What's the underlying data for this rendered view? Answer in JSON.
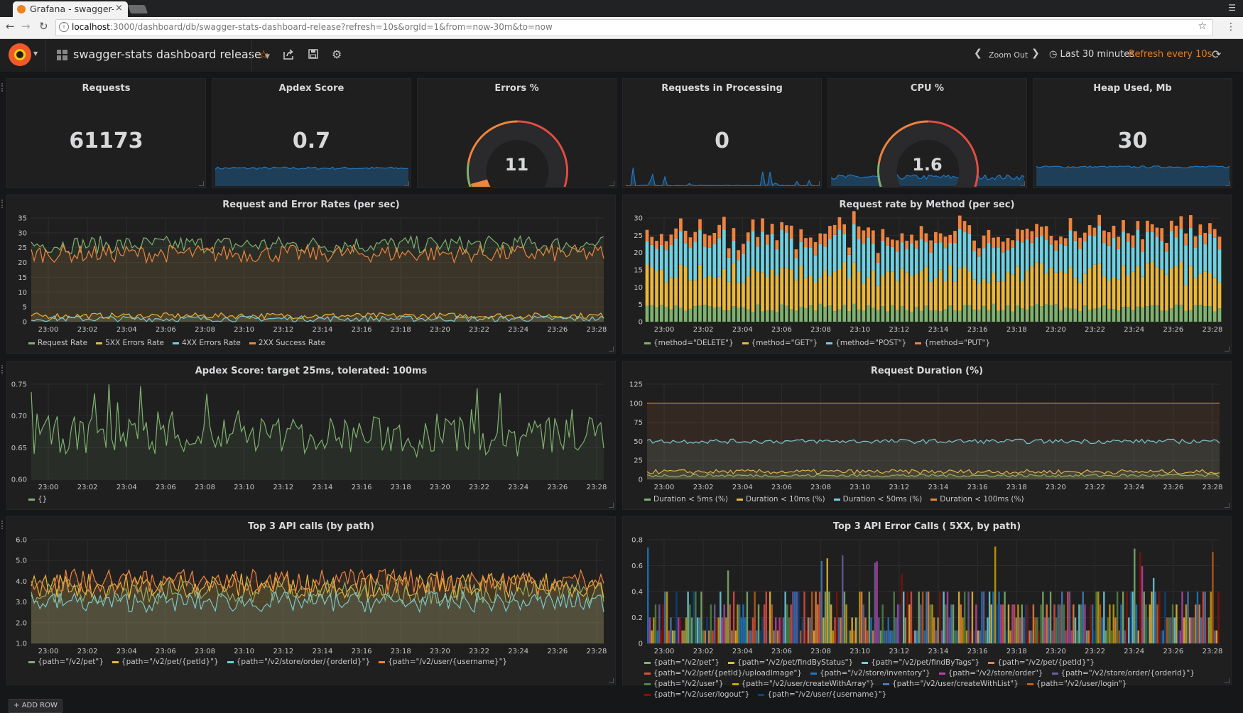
{
  "browser": {
    "tab_title": "Grafana - swagger-stats",
    "tab_close": "×",
    "url_host": "localhost",
    "url_rest": ":3000/dashboard/db/swagger-stats-dashboard-release?refresh=10s&orgId=1&from=now-30m&to=now"
  },
  "navbar": {
    "dashboard_title": "swagger-stats dashboard release",
    "zoom_out": "Zoom Out",
    "time_range": "Last 30 minutes",
    "refresh": "Refresh every 10s",
    "icons": [
      "grafana-logo",
      "dashboard-grid-icon",
      "star-icon",
      "share-icon",
      "save-icon",
      "settings-gear-icon",
      "chevron-left-icon",
      "chevron-right-icon",
      "clock-icon",
      "refresh-icon"
    ]
  },
  "colors": {
    "green": "#7eb26d",
    "yellow": "#eab839",
    "cyan": "#6ed0e0",
    "orange": "#ef843c",
    "red": "#e24d42",
    "blue": "#1f78c1",
    "purple": "#ba43a9",
    "dark_orange": "#cca300"
  },
  "stats": [
    {
      "title": "Requests",
      "value": "61173"
    },
    {
      "title": "Apdex Score",
      "value": "0.7"
    },
    {
      "title": "Errors %",
      "value": "11",
      "gauge_fraction": 0.11,
      "gauge_max": 100
    },
    {
      "title": "Requests in Processing",
      "value": "0"
    },
    {
      "title": "CPU %",
      "value": "1.6",
      "gauge_fraction": 0.016,
      "gauge_max": 100
    },
    {
      "title": "Heap Used, Mb",
      "value": "30"
    }
  ],
  "chart_data": [
    {
      "type": "line",
      "title": "Request and Error Rates (per sec)",
      "x_ticks": [
        "23:00",
        "23:02",
        "23:04",
        "23:06",
        "23:08",
        "23:10",
        "23:12",
        "23:14",
        "23:16",
        "23:18",
        "23:20",
        "23:22",
        "23:24",
        "23:26",
        "23:28"
      ],
      "y_ticks": [
        "0",
        "5",
        "10",
        "15",
        "20",
        "25",
        "30",
        "35"
      ],
      "ylim": [
        0,
        35
      ],
      "series": [
        {
          "name": "Request Rate",
          "color": "#7eb26d",
          "approx_level": 26,
          "spread": 3
        },
        {
          "name": "5XX Errors Rate",
          "color": "#eab839",
          "approx_level": 2,
          "spread": 1
        },
        {
          "name": "4XX Errors Rate",
          "color": "#6ed0e0",
          "approx_level": 1,
          "spread": 1
        },
        {
          "name": "2XX Success Rate",
          "color": "#ef843c",
          "approx_level": 23,
          "spread": 3
        }
      ]
    },
    {
      "type": "bar",
      "stacked": true,
      "title": "Request rate by Method (per sec)",
      "x_ticks": [
        "23:00",
        "23:02",
        "23:04",
        "23:06",
        "23:08",
        "23:10",
        "23:12",
        "23:14",
        "23:16",
        "23:18",
        "23:20",
        "23:22",
        "23:24",
        "23:26",
        "23:28"
      ],
      "y_ticks": [
        "0",
        "5",
        "10",
        "15",
        "20",
        "25",
        "30"
      ],
      "ylim": [
        0,
        30
      ],
      "series": [
        {
          "name": "{method=\"DELETE\"}",
          "color": "#7eb26d",
          "approx_level": 4
        },
        {
          "name": "{method=\"GET\"}",
          "color": "#eab839",
          "approx_level": 10
        },
        {
          "name": "{method=\"POST\"}",
          "color": "#6ed0e0",
          "approx_level": 9
        },
        {
          "name": "{method=\"PUT\"}",
          "color": "#ef843c",
          "approx_level": 3
        }
      ]
    },
    {
      "type": "line",
      "title": "Apdex Score: target 25ms, tolerated: 100ms",
      "x_ticks": [
        "23:00",
        "23:02",
        "23:04",
        "23:06",
        "23:08",
        "23:10",
        "23:12",
        "23:14",
        "23:16",
        "23:18",
        "23:20",
        "23:22",
        "23:24",
        "23:26",
        "23:28"
      ],
      "y_ticks": [
        "0.60",
        "0.65",
        "0.70",
        "0.75"
      ],
      "ylim": [
        0.6,
        0.75
      ],
      "series": [
        {
          "name": "{}",
          "color": "#7eb26d",
          "approx_level": 0.67,
          "spread": 0.03
        }
      ]
    },
    {
      "type": "line",
      "title": "Request Duration (%)",
      "x_ticks": [
        "23:00",
        "23:02",
        "23:04",
        "23:06",
        "23:08",
        "23:10",
        "23:12",
        "23:14",
        "23:16",
        "23:18",
        "23:20",
        "23:22",
        "23:24",
        "23:26",
        "23:28"
      ],
      "y_ticks": [
        "0",
        "25",
        "50",
        "75",
        "100",
        "125"
      ],
      "ylim": [
        0,
        125
      ],
      "series": [
        {
          "name": "Duration < 5ms (%)",
          "color": "#7eb26d",
          "approx_level": 5,
          "spread": 2
        },
        {
          "name": "Duration < 10ms (%)",
          "color": "#eab839",
          "approx_level": 10,
          "spread": 3
        },
        {
          "name": "Duration < 50ms (%)",
          "color": "#6ed0e0",
          "approx_level": 50,
          "spread": 3
        },
        {
          "name": "Duration < 100ms (%)",
          "color": "#ef843c",
          "approx_level": 100,
          "spread": 0
        }
      ]
    },
    {
      "type": "line",
      "title": "Top 3 API calls (by path)",
      "x_ticks": [
        "23:00",
        "23:02",
        "23:04",
        "23:06",
        "23:08",
        "23:10",
        "23:12",
        "23:14",
        "23:16",
        "23:18",
        "23:20",
        "23:22",
        "23:24",
        "23:26",
        "23:28"
      ],
      "y_ticks": [
        "1.0",
        "2.0",
        "3.0",
        "4.0",
        "5.0",
        "6.0"
      ],
      "ylim": [
        1,
        6
      ],
      "series": [
        {
          "name": "{path=\"/v2/pet\"}",
          "color": "#7eb26d",
          "approx_level": 3.5,
          "spread": 0.6
        },
        {
          "name": "{path=\"/v2/pet/{petId}\"}",
          "color": "#eab839",
          "approx_level": 3.8,
          "spread": 0.6
        },
        {
          "name": "{path=\"/v2/store/order/{orderId}\"}",
          "color": "#6ed0e0",
          "approx_level": 3.0,
          "spread": 0.5
        },
        {
          "name": "{path=\"/v2/user/{username}\"}",
          "color": "#ef843c",
          "approx_level": 4.0,
          "spread": 0.6
        }
      ]
    },
    {
      "type": "bar",
      "title": "Top 3 API Error Calls ( 5XX, by path)",
      "x_ticks": [
        "23:00",
        "23:02",
        "23:04",
        "23:06",
        "23:08",
        "23:10",
        "23:12",
        "23:14",
        "23:16",
        "23:18",
        "23:20",
        "23:22",
        "23:24",
        "23:26",
        "23:28"
      ],
      "y_ticks": [
        "0",
        "0.2",
        "0.4",
        "0.6",
        "0.8"
      ],
      "ylim": [
        0,
        0.8
      ],
      "series": [
        {
          "name": "{path=\"/v2/pet\"}",
          "color": "#7eb26d"
        },
        {
          "name": "{path=\"/v2/pet/findByStatus\"}",
          "color": "#eab839"
        },
        {
          "name": "{path=\"/v2/pet/findByTags\"}",
          "color": "#6ed0e0"
        },
        {
          "name": "{path=\"/v2/pet/{petId}\"}",
          "color": "#ef843c"
        },
        {
          "name": "{path=\"/v2/pet/{petId}/uploadImage\"}",
          "color": "#e24d42"
        },
        {
          "name": "{path=\"/v2/store/inventory\"}",
          "color": "#1f78c1"
        },
        {
          "name": "{path=\"/v2/store/order\"}",
          "color": "#ba43a9"
        },
        {
          "name": "{path=\"/v2/store/order/{orderId}\"}",
          "color": "#705da0"
        },
        {
          "name": "{path=\"/v2/user\"}",
          "color": "#508642"
        },
        {
          "name": "{path=\"/v2/user/createWithArray\"}",
          "color": "#cca300"
        },
        {
          "name": "{path=\"/v2/user/createWithList\"}",
          "color": "#447ebc"
        },
        {
          "name": "{path=\"/v2/user/login\"}",
          "color": "#c15c17"
        },
        {
          "name": "{path=\"/v2/user/logout\"}",
          "color": "#890f02"
        },
        {
          "name": "{path=\"/v2/user/{username}\"}",
          "color": "#0a437c"
        }
      ]
    }
  ],
  "add_row": "+ ADD ROW"
}
